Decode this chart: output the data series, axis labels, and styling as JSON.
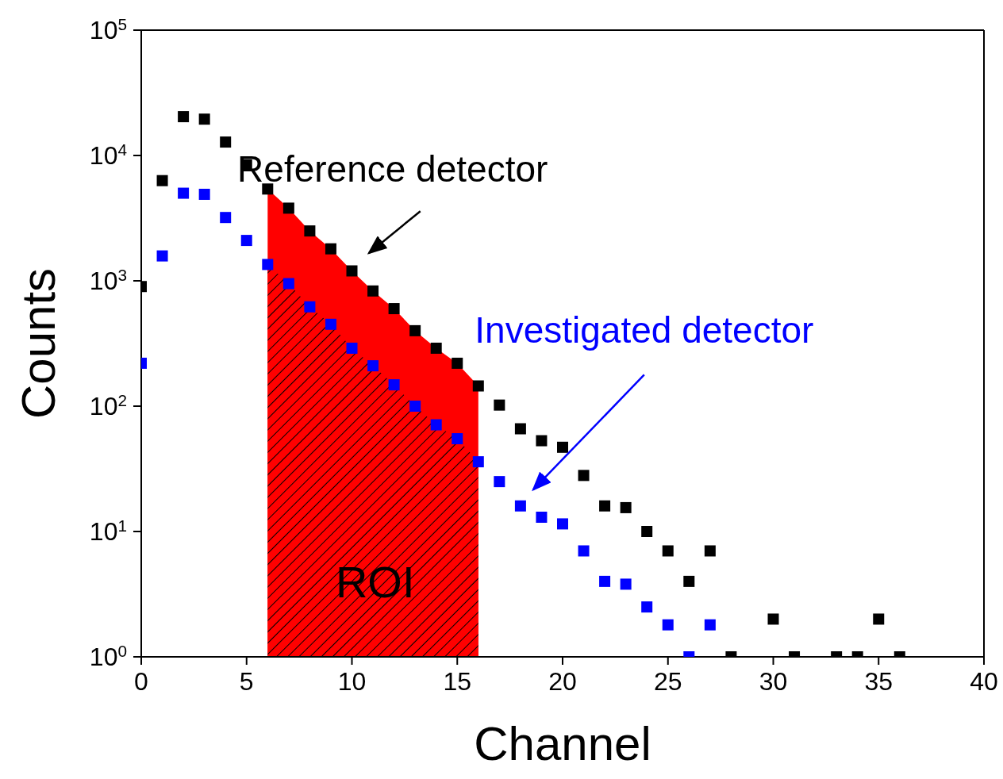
{
  "chart_data": {
    "type": "scatter",
    "xlabel": "Channel",
    "ylabel": "Counts",
    "log": "y",
    "marker": "square",
    "xlim": [
      0,
      40
    ],
    "xticks": [
      0,
      5,
      10,
      15,
      20,
      25,
      30,
      35,
      40
    ],
    "ylim": [
      1,
      100000
    ],
    "yticks": [
      {
        "value": 1,
        "label": "10$^{0}$"
      },
      {
        "value": 10,
        "label": "10$^{1}$"
      },
      {
        "value": 100,
        "label": "10$^{2}$"
      },
      {
        "value": 1000,
        "label": "10$^{3}$"
      },
      {
        "value": 10000,
        "label": "10$^{4}$"
      },
      {
        "value": 100000,
        "label": "10$^{5}$"
      }
    ],
    "series": [
      {
        "color": "#000000",
        "x": [
          0,
          1,
          2,
          3,
          4,
          5,
          6,
          7,
          8,
          9,
          10,
          11,
          12,
          13,
          14,
          15,
          16,
          17,
          18,
          19,
          20,
          21,
          22,
          23,
          24,
          25,
          26,
          27,
          28,
          30,
          31,
          33,
          34,
          35,
          36
        ],
        "values": [
          900,
          6300,
          20400,
          19500,
          12800,
          8400,
          5400,
          3800,
          2500,
          1800,
          1200,
          830,
          600,
          400,
          290,
          220,
          145,
          102,
          66,
          53,
          47,
          28,
          16,
          15.5,
          10,
          7,
          4,
          7,
          1,
          2,
          1,
          1,
          1,
          2,
          1
        ]
      },
      {
        "color": "#0000ff",
        "x": [
          0,
          1,
          2,
          3,
          4,
          5,
          6,
          7,
          8,
          9,
          10,
          11,
          12,
          13,
          14,
          15,
          16,
          17,
          18,
          19,
          20,
          21,
          22,
          23,
          24,
          25,
          26,
          27
        ],
        "values": [
          220,
          1580,
          5000,
          4900,
          3200,
          2100,
          1350,
          950,
          620,
          450,
          290,
          210,
          148,
          100,
          71,
          55,
          36,
          25,
          16,
          13,
          11.5,
          7,
          4,
          3.8,
          2.5,
          1.8,
          1,
          1.8
        ]
      },
      {
        "type": "area",
        "marker": "none",
        "color": "#ff0000",
        "x": [
          6,
          7,
          8,
          9,
          10,
          11,
          12,
          13,
          14,
          15,
          16
        ],
        "values": [
          5400,
          3800,
          2500,
          1800,
          1200,
          830,
          600,
          400,
          290,
          220,
          145
        ]
      },
      {
        "type": "area",
        "marker": "none",
        "color": "#ff0000",
        "x": [
          6,
          7,
          8,
          9,
          10,
          11,
          12,
          13,
          14,
          15,
          16
        ],
        "values": [
          1350,
          950,
          620,
          450,
          290,
          210,
          148,
          100,
          71,
          55,
          36
        ]
      }
    ],
    "annotations": [
      "Reference detector",
      "Investigated detector",
      "ROI"
    ]
  }
}
